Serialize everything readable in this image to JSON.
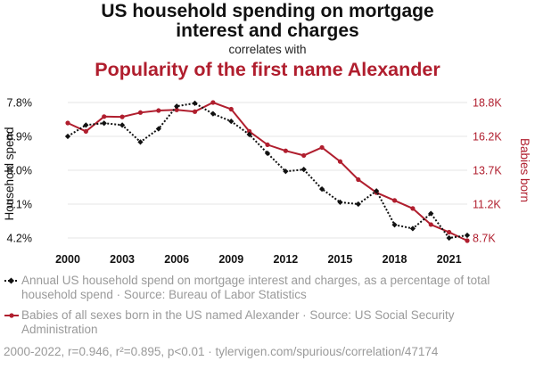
{
  "title_line1": "US household spending on mortgage",
  "title_line2": "interest and charges",
  "subtitle": "correlates with",
  "title2": "Popularity of the first name Alexander",
  "footer": "2000-2022, r=0.946, r²=0.895, p<0.01 · tylervigen.com/spurious/correlation/47174",
  "legend": {
    "series1": "Annual US household spend on mortgage interest and charges, as a percentage of total household spend · Source: Bureau of Labor Statistics",
    "series2": "Babies of all sexes born in the US named Alexander · Source: US Social Security Administration"
  },
  "colors": {
    "series1": "#111111",
    "series2": "#b01e2e",
    "grid": "#e6e6e6"
  },
  "chart_data": {
    "type": "line",
    "x": [
      2000,
      2001,
      2002,
      2003,
      2004,
      2005,
      2006,
      2007,
      2008,
      2009,
      2010,
      2011,
      2012,
      2013,
      2014,
      2015,
      2016,
      2017,
      2018,
      2019,
      2020,
      2021,
      2022
    ],
    "xticks": [
      "2000",
      "2003",
      "2006",
      "2009",
      "2012",
      "2015",
      "2018",
      "2021"
    ],
    "ylabel_left": "Household spend",
    "ylabel_right": "Babies born",
    "left_ticks": [
      "7.8%",
      "6.9%",
      "6.0%",
      "5.1%",
      "4.2%"
    ],
    "right_ticks": [
      "18.8K",
      "16.2K",
      "13.7K",
      "11.2K",
      "8.7K"
    ],
    "ylim_left": [
      4.2,
      7.8
    ],
    "ylim_right": [
      8700,
      18800
    ],
    "grid": true,
    "series": [
      {
        "name": "Household spend",
        "axis": "left",
        "style": "dotted",
        "values": [
          6.9,
          7.2,
          7.25,
          7.2,
          6.75,
          7.1,
          7.7,
          7.78,
          7.5,
          7.3,
          6.95,
          6.45,
          5.97,
          6.02,
          5.5,
          5.15,
          5.1,
          5.45,
          4.55,
          4.45,
          4.85,
          4.2,
          4.27
        ]
      },
      {
        "name": "Babies born",
        "axis": "right",
        "style": "solid",
        "values": [
          17270,
          16650,
          17750,
          17730,
          18050,
          18200,
          18250,
          18120,
          18800,
          18300,
          16650,
          15650,
          15200,
          14850,
          15450,
          14400,
          13050,
          12080,
          11500,
          10900,
          9700,
          9130,
          8500
        ]
      }
    ]
  }
}
